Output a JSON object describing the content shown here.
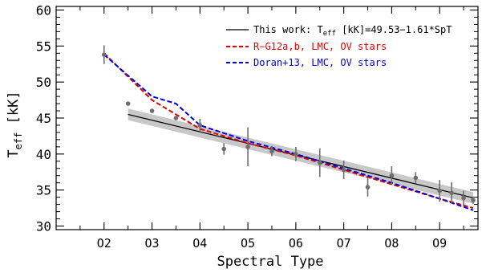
{
  "chart_data": {
    "type": "line",
    "title": "",
    "xlabel": "Spectral Type",
    "ylabel_main": "T",
    "ylabel_sub": "eff",
    "ylabel_unit": " [kK]",
    "xlim": [
      1.0,
      9.8
    ],
    "ylim": [
      29.5,
      60.5
    ],
    "x_ticks": [
      {
        "value": 2,
        "label": "O2"
      },
      {
        "value": 3,
        "label": "O3"
      },
      {
        "value": 4,
        "label": "O4"
      },
      {
        "value": 5,
        "label": "O5"
      },
      {
        "value": 6,
        "label": "O6"
      },
      {
        "value": 7,
        "label": "O7"
      },
      {
        "value": 8,
        "label": "O8"
      },
      {
        "value": 9,
        "label": "O9"
      }
    ],
    "x_minor_step": 0.5,
    "y_ticks": [
      30,
      35,
      40,
      45,
      50,
      55,
      60
    ],
    "y_minor_step": 1,
    "grid": false,
    "legend_position": "top-right",
    "legend": [
      {
        "id": "fit",
        "label_pre": "This work: T",
        "label_sub": "eff",
        "label_post": " [kK]=49.53−1.61*SpT",
        "text_color": "#000000"
      },
      {
        "id": "rg12",
        "label": "R−G12a,b, LMC, OV stars",
        "text_color": "#e00000"
      },
      {
        "id": "doran13",
        "label": "Doran+13, LMC, OV stars",
        "text_color": "#0000e0"
      }
    ],
    "fit": {
      "intercept": 49.53,
      "slope": -1.61,
      "x_range": [
        2.5,
        9.7
      ],
      "band_halfwidth": 0.8,
      "color": "#000000",
      "band_color": "#c8c8c8"
    },
    "series": [
      {
        "id": "rg12",
        "color": "#e00000",
        "style": "dashed",
        "x": [
          2,
          3,
          4,
          5,
          6,
          7,
          8,
          9,
          9.7
        ],
        "y": [
          54.0,
          47.5,
          43.5,
          41.5,
          39.8,
          37.8,
          35.8,
          33.8,
          32.5
        ]
      },
      {
        "id": "doran13",
        "color": "#0000e0",
        "style": "dashed",
        "x": [
          2,
          3,
          3.5,
          4,
          5,
          6,
          7,
          8,
          9,
          9.7
        ],
        "y": [
          53.8,
          48.0,
          47.0,
          44.0,
          41.8,
          40.0,
          38.0,
          36.0,
          33.8,
          32.2
        ]
      }
    ],
    "points": {
      "color": "#6e6e6e",
      "data": [
        {
          "x": 2.0,
          "y": 53.8,
          "err": 1.3
        },
        {
          "x": 2.5,
          "y": 47.0,
          "err": 0
        },
        {
          "x": 3.0,
          "y": 46.0,
          "err": 0
        },
        {
          "x": 3.5,
          "y": 45.0,
          "err": 0
        },
        {
          "x": 4.0,
          "y": 44.0,
          "err": 0.9
        },
        {
          "x": 4.5,
          "y": 40.7,
          "err": 0.8
        },
        {
          "x": 5.0,
          "y": 41.0,
          "err": 2.7
        },
        {
          "x": 5.5,
          "y": 40.4,
          "err": 0.7
        },
        {
          "x": 6.0,
          "y": 40.0,
          "err": 1.0
        },
        {
          "x": 6.5,
          "y": 38.8,
          "err": 2.0
        },
        {
          "x": 7.0,
          "y": 37.8,
          "err": 1.3
        },
        {
          "x": 7.5,
          "y": 35.4,
          "err": 1.3
        },
        {
          "x": 8.0,
          "y": 37.0,
          "err": 1.3
        },
        {
          "x": 8.5,
          "y": 36.7,
          "err": 0.8
        },
        {
          "x": 9.0,
          "y": 34.9,
          "err": 1.5
        },
        {
          "x": 9.25,
          "y": 34.6,
          "err": 1.5
        },
        {
          "x": 9.5,
          "y": 33.9,
          "err": 1.0
        },
        {
          "x": 9.7,
          "y": 33.6,
          "err": 0.5
        }
      ]
    }
  }
}
